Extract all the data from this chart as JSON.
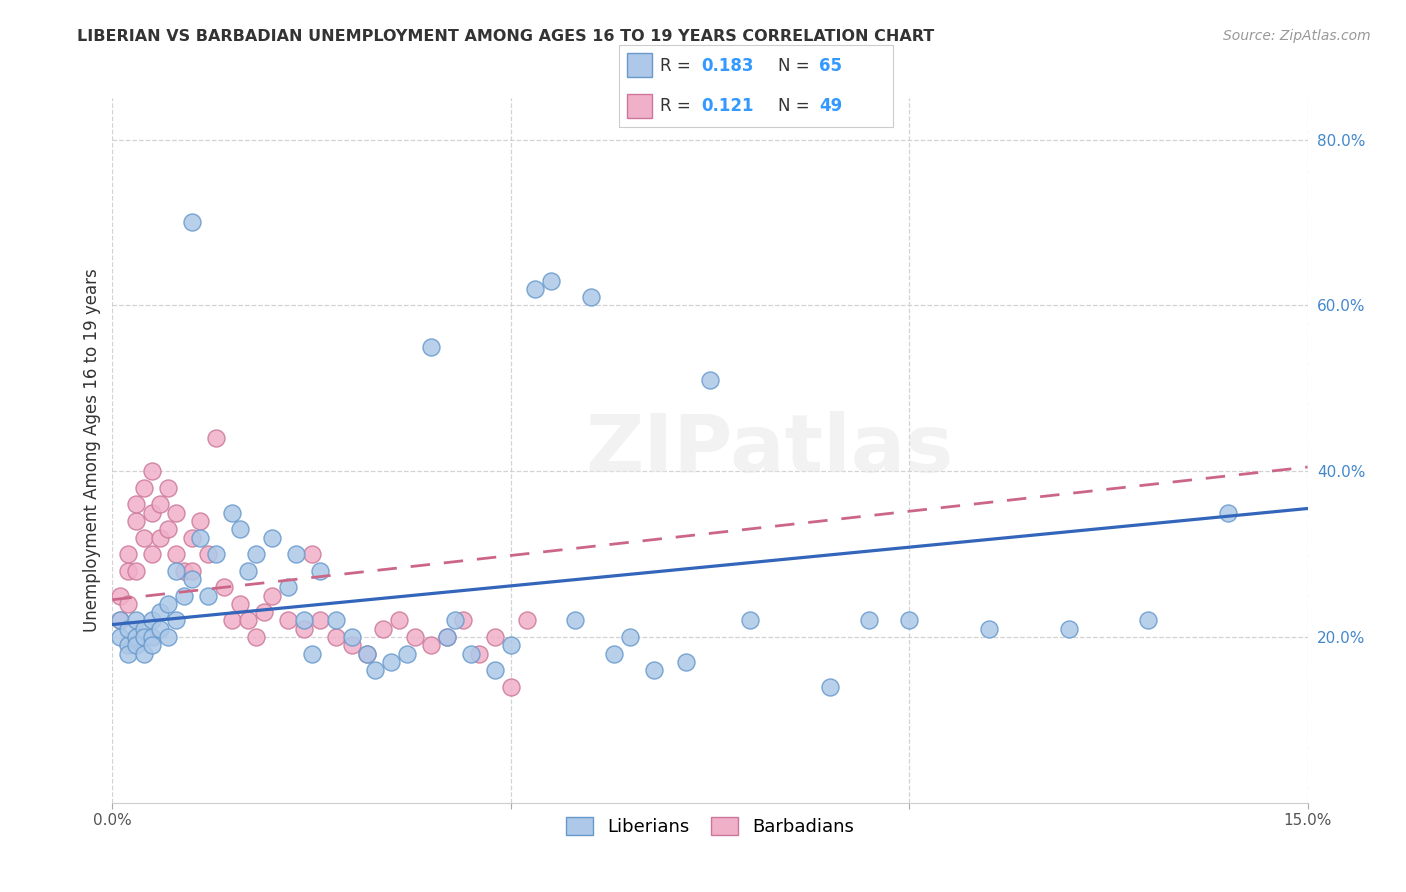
{
  "title": "LIBERIAN VS BARBADIAN UNEMPLOYMENT AMONG AGES 16 TO 19 YEARS CORRELATION CHART",
  "source": "Source: ZipAtlas.com",
  "ylabel": "Unemployment Among Ages 16 to 19 years",
  "xlim": [
    0.0,
    0.15
  ],
  "ylim": [
    0.0,
    0.85
  ],
  "xticks": [
    0.0,
    0.05,
    0.1,
    0.15
  ],
  "xticklabels": [
    "0.0%",
    "",
    "",
    "15.0%"
  ],
  "yticks": [
    0.2,
    0.4,
    0.6,
    0.8
  ],
  "yticklabels": [
    "20.0%",
    "40.0%",
    "60.0%",
    "80.0%"
  ],
  "background_color": "#ffffff",
  "grid_color": "#cccccc",
  "liberian_fill": "#adc8e8",
  "liberian_edge": "#6699cc",
  "barbadian_fill": "#f0b0c8",
  "barbadian_edge": "#cc7799",
  "liberian_line_color": "#3366bb",
  "barbadian_line_color": "#cc6688",
  "legend_text_color": "#3399ff",
  "R_liberian": 0.183,
  "N_liberian": 65,
  "R_barbadian": 0.121,
  "N_barbadian": 49,
  "liberian_trend_x": [
    0.0,
    0.15
  ],
  "liberian_trend_y": [
    0.215,
    0.355
  ],
  "barbadian_trend_x": [
    0.0,
    0.15
  ],
  "barbadian_trend_y": [
    0.245,
    0.405
  ],
  "liberian_x": [
    0.001,
    0.001,
    0.002,
    0.002,
    0.002,
    0.003,
    0.003,
    0.003,
    0.004,
    0.004,
    0.004,
    0.005,
    0.005,
    0.005,
    0.006,
    0.006,
    0.007,
    0.007,
    0.008,
    0.008,
    0.009,
    0.01,
    0.01,
    0.011,
    0.012,
    0.013,
    0.015,
    0.016,
    0.017,
    0.018,
    0.02,
    0.022,
    0.023,
    0.024,
    0.025,
    0.026,
    0.028,
    0.03,
    0.032,
    0.033,
    0.035,
    0.037,
    0.04,
    0.042,
    0.043,
    0.045,
    0.048,
    0.05,
    0.053,
    0.055,
    0.058,
    0.06,
    0.063,
    0.065,
    0.068,
    0.072,
    0.075,
    0.08,
    0.09,
    0.095,
    0.1,
    0.11,
    0.12,
    0.13,
    0.14
  ],
  "liberian_y": [
    0.22,
    0.2,
    0.19,
    0.21,
    0.18,
    0.2,
    0.22,
    0.19,
    0.21,
    0.2,
    0.18,
    0.22,
    0.2,
    0.19,
    0.23,
    0.21,
    0.24,
    0.2,
    0.28,
    0.22,
    0.25,
    0.7,
    0.27,
    0.32,
    0.25,
    0.3,
    0.35,
    0.33,
    0.28,
    0.3,
    0.32,
    0.26,
    0.3,
    0.22,
    0.18,
    0.28,
    0.22,
    0.2,
    0.18,
    0.16,
    0.17,
    0.18,
    0.55,
    0.2,
    0.22,
    0.18,
    0.16,
    0.19,
    0.62,
    0.63,
    0.22,
    0.61,
    0.18,
    0.2,
    0.16,
    0.17,
    0.51,
    0.22,
    0.14,
    0.22,
    0.22,
    0.21,
    0.21,
    0.22,
    0.35
  ],
  "barbadian_x": [
    0.001,
    0.001,
    0.002,
    0.002,
    0.002,
    0.003,
    0.003,
    0.003,
    0.004,
    0.004,
    0.005,
    0.005,
    0.005,
    0.006,
    0.006,
    0.007,
    0.007,
    0.008,
    0.008,
    0.009,
    0.01,
    0.01,
    0.011,
    0.012,
    0.013,
    0.014,
    0.015,
    0.016,
    0.017,
    0.018,
    0.019,
    0.02,
    0.022,
    0.024,
    0.025,
    0.026,
    0.028,
    0.03,
    0.032,
    0.034,
    0.036,
    0.038,
    0.04,
    0.042,
    0.044,
    0.046,
    0.048,
    0.05,
    0.052
  ],
  "barbadian_y": [
    0.25,
    0.22,
    0.28,
    0.3,
    0.24,
    0.34,
    0.36,
    0.28,
    0.32,
    0.38,
    0.4,
    0.35,
    0.3,
    0.36,
    0.32,
    0.38,
    0.33,
    0.3,
    0.35,
    0.28,
    0.32,
    0.28,
    0.34,
    0.3,
    0.44,
    0.26,
    0.22,
    0.24,
    0.22,
    0.2,
    0.23,
    0.25,
    0.22,
    0.21,
    0.3,
    0.22,
    0.2,
    0.19,
    0.18,
    0.21,
    0.22,
    0.2,
    0.19,
    0.2,
    0.22,
    0.18,
    0.2,
    0.14,
    0.22
  ]
}
